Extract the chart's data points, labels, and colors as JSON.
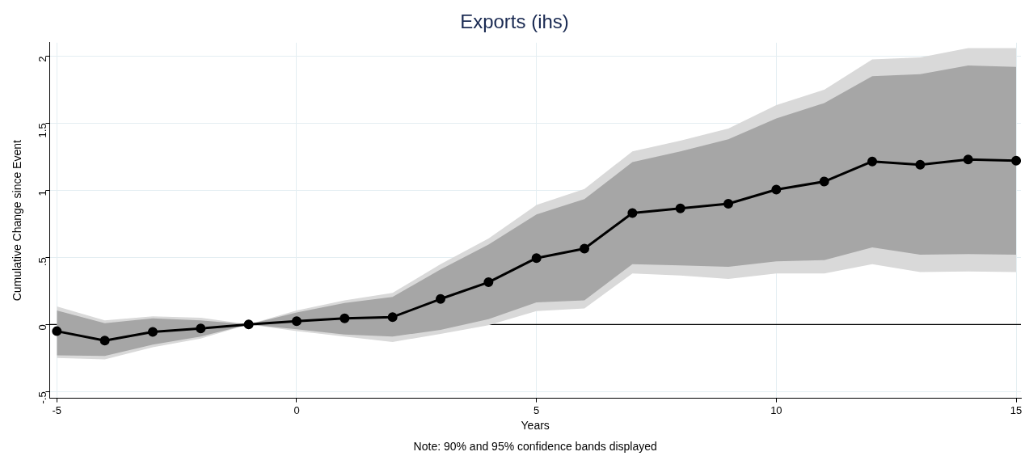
{
  "chart_data": {
    "type": "line",
    "title": "Exports (ihs)",
    "xlabel": "Years",
    "ylabel": "Cumulative Change since Event",
    "annotations": [
      "Note: 90% and 95% confidence bands displayed"
    ],
    "x": [
      -5,
      -4,
      -3,
      -2,
      -1,
      0,
      1,
      2,
      3,
      4,
      5,
      6,
      7,
      8,
      9,
      10,
      11,
      12,
      13,
      14,
      15
    ],
    "series": [
      {
        "type": "area",
        "color": "#d9d9d9",
        "values": [
          null,
          null,
          null,
          null,
          null,
          null,
          null,
          null,
          null,
          null,
          null,
          null,
          null,
          null,
          null,
          null,
          null,
          null,
          null,
          null,
          null
        ],
        "lower": [
          -0.25,
          -0.26,
          -0.17,
          -0.105,
          0,
          -0.05,
          -0.09,
          -0.13,
          -0.07,
          -0.005,
          0.1,
          0.12,
          0.38,
          0.365,
          0.34,
          0.38,
          0.38,
          0.45,
          0.39,
          0.395,
          0.39
        ],
        "upper": [
          0.135,
          0.03,
          0.06,
          0.05,
          0,
          0.105,
          0.18,
          0.235,
          0.45,
          0.64,
          0.89,
          1.01,
          1.29,
          1.37,
          1.46,
          1.635,
          1.75,
          1.975,
          1.99,
          2.06,
          2.06
        ]
      },
      {
        "type": "area",
        "color": "#a6a6a6",
        "values": [
          null,
          null,
          null,
          null,
          null,
          null,
          null,
          null,
          null,
          null,
          null,
          null,
          null,
          null,
          null,
          null,
          null,
          null,
          null,
          null,
          null
        ],
        "lower": [
          -0.23,
          -0.235,
          -0.15,
          -0.09,
          0,
          -0.035,
          -0.075,
          -0.09,
          -0.04,
          0.04,
          0.165,
          0.18,
          0.45,
          0.44,
          0.43,
          0.47,
          0.48,
          0.575,
          0.52,
          0.525,
          0.52
        ],
        "upper": [
          0.105,
          0.01,
          0.045,
          0.03,
          0,
          0.09,
          0.16,
          0.205,
          0.41,
          0.595,
          0.82,
          0.935,
          1.21,
          1.29,
          1.38,
          1.535,
          1.65,
          1.85,
          1.865,
          1.93,
          1.92
        ]
      },
      {
        "type": "line",
        "color": "#000000",
        "values": [
          -0.05,
          -0.12,
          -0.055,
          -0.03,
          0,
          0.025,
          0.045,
          0.055,
          0.19,
          0.315,
          0.495,
          0.565,
          0.83,
          0.865,
          0.9,
          1.005,
          1.065,
          1.215,
          1.19,
          1.23,
          1.22
        ]
      }
    ],
    "xlim": [
      -5.15,
      15.1
    ],
    "xticks": [
      -5,
      0,
      5,
      10,
      15
    ],
    "ylim": [
      -0.55,
      2.1
    ],
    "yticks": [
      {
        "value": -0.5,
        "label": "-.5"
      },
      0,
      {
        "value": 0.5,
        "label": ".5"
      },
      1,
      1.5,
      2
    ],
    "ref_lines": [
      {
        "axis": "y",
        "value": 0,
        "color": "#000000"
      }
    ],
    "grid": true,
    "legend": false,
    "marker": "circle",
    "line_style": "solid"
  }
}
